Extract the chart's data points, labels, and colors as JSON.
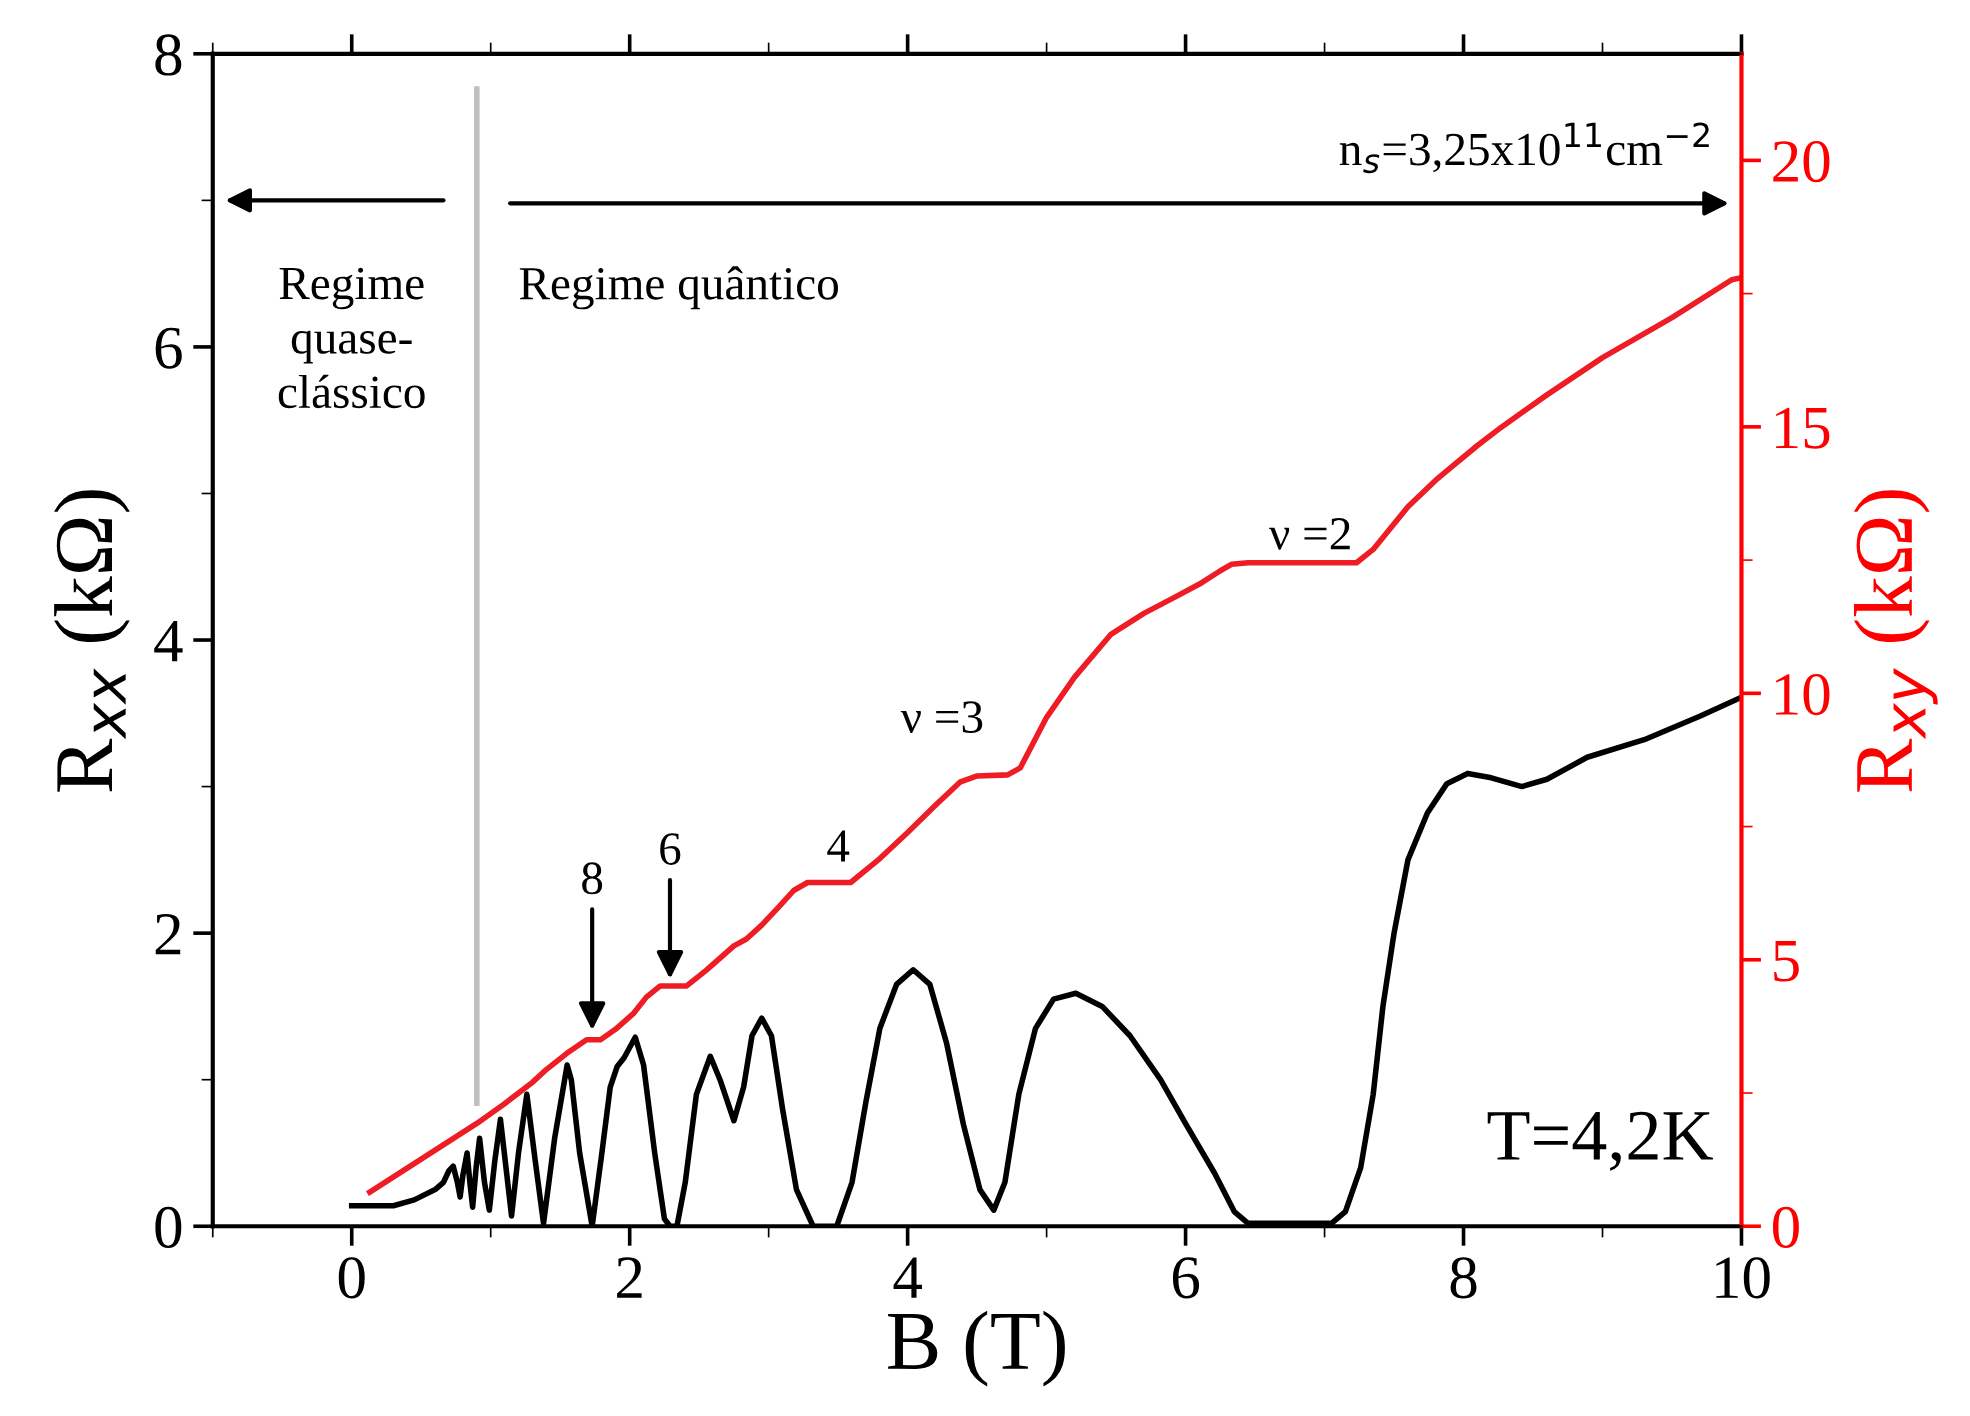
{
  "chart_data": {
    "type": "line",
    "xlabel": "B (T)",
    "ylabel": "R$_{xx}$ (kΩ)",
    "y2label": "R$_{xy}$ (kΩ)",
    "xlim": [
      -1,
      10
    ],
    "xticks": [
      0,
      2,
      4,
      6,
      8,
      10
    ],
    "ylim": [
      0,
      8
    ],
    "yticks": [
      0,
      2,
      4,
      6,
      8
    ],
    "y2lim": [
      0,
      22
    ],
    "y2ticks": [
      0,
      5,
      10,
      15,
      20
    ],
    "grid": false,
    "legend": false,
    "marker": "none",
    "line_style": "solid",
    "series": [
      {
        "color": "#000000",
        "x": [
          0,
          0.3,
          0.45,
          0.6,
          0.66,
          0.7,
          0.73,
          0.76,
          0.78,
          0.8,
          0.83,
          0.85,
          0.87,
          0.895,
          0.92,
          0.955,
          0.99,
          1.03,
          1.07,
          1.11,
          1.15,
          1.2,
          1.26,
          1.32,
          1.38,
          1.46,
          1.55,
          1.58,
          1.64,
          1.73,
          1.8,
          1.86,
          1.91,
          1.96,
          2.04,
          2.1,
          2.18,
          2.25,
          2.29,
          2.34,
          2.4,
          2.48,
          2.58,
          2.65,
          2.75,
          2.82,
          2.88,
          2.95,
          3.02,
          3.1,
          3.2,
          3.32,
          3.49,
          3.6,
          3.7,
          3.8,
          3.92,
          4.04,
          4.16,
          4.28,
          4.4,
          4.52,
          4.62,
          4.7,
          4.8,
          4.92,
          5.05,
          5.21,
          5.4,
          5.6,
          5.82,
          6.0,
          6.21,
          6.35,
          6.45,
          7.05,
          7.15,
          7.26,
          7.35,
          7.42,
          7.5,
          7.6,
          7.74,
          7.88,
          8.03,
          8.2,
          8.42,
          8.6,
          8.89,
          9.3,
          9.7,
          10
        ],
        "values": [
          0.14,
          0.14,
          0.18,
          0.25,
          0.3,
          0.38,
          0.41,
          0.3,
          0.2,
          0.35,
          0.5,
          0.3,
          0.13,
          0.4,
          0.6,
          0.3,
          0.11,
          0.45,
          0.73,
          0.4,
          0.07,
          0.5,
          0.9,
          0.45,
          0.02,
          0.6,
          1.1,
          1.0,
          0.5,
          0.0,
          0.5,
          0.95,
          1.09,
          1.15,
          1.29,
          1.1,
          0.5,
          0.05,
          0.0,
          0.0,
          0.3,
          0.9,
          1.16,
          1.0,
          0.72,
          0.95,
          1.3,
          1.42,
          1.3,
          0.8,
          0.25,
          0.0,
          0.0,
          0.3,
          0.85,
          1.35,
          1.65,
          1.75,
          1.65,
          1.25,
          0.7,
          0.25,
          0.11,
          0.3,
          0.9,
          1.35,
          1.55,
          1.59,
          1.5,
          1.3,
          1.0,
          0.7,
          0.36,
          0.1,
          0.02,
          0.02,
          0.1,
          0.4,
          0.9,
          1.5,
          2.0,
          2.5,
          2.82,
          3.02,
          3.09,
          3.06,
          3.0,
          3.05,
          3.2,
          3.32,
          3.48,
          3.61
        ]
      },
      {
        "color": "#ee1c25",
        "axis": "y2",
        "x": [
          0.13,
          0.9,
          1.1,
          1.21,
          1.3,
          1.4,
          1.55,
          1.69,
          1.79,
          1.9,
          2.03,
          2.12,
          2.22,
          2.41,
          2.55,
          2.75,
          2.84,
          2.95,
          3.08,
          3.18,
          3.28,
          3.59,
          3.8,
          4.0,
          4.2,
          4.38,
          4.5,
          4.72,
          4.81,
          4.9,
          5.0,
          5.2,
          5.46,
          5.7,
          5.92,
          6.1,
          6.25,
          6.33,
          6.45,
          7.23,
          7.35,
          7.6,
          7.8,
          7.91,
          8.1,
          8.27,
          8.6,
          9.0,
          9.5,
          9.93,
          10
        ],
        "values": [
          0.64,
          1.93,
          2.3,
          2.52,
          2.7,
          2.94,
          3.25,
          3.5,
          3.5,
          3.7,
          4.0,
          4.3,
          4.51,
          4.51,
          4.8,
          5.26,
          5.39,
          5.65,
          6.01,
          6.3,
          6.45,
          6.45,
          6.9,
          7.39,
          7.9,
          8.34,
          8.45,
          8.47,
          8.6,
          9.05,
          9.55,
          10.3,
          11.1,
          11.5,
          11.8,
          12.05,
          12.3,
          12.42,
          12.45,
          12.45,
          12.7,
          13.5,
          14.0,
          14.24,
          14.65,
          14.99,
          15.6,
          16.3,
          17.05,
          17.76,
          17.8
        ]
      }
    ],
    "ref_lines": [
      {
        "axis": "x",
        "value": 0.9,
        "color": "#c0c0c0",
        "line_style": "solid"
      }
    ],
    "annotations": [
      "Regime\nquase-\nclássico",
      "Regime quântico",
      "n$_{s}$=3,25x10$^{11}$cm$^{−2}$",
      "ν =2",
      "ν =3",
      "4",
      "6",
      "8",
      "T=4,2K"
    ]
  }
}
